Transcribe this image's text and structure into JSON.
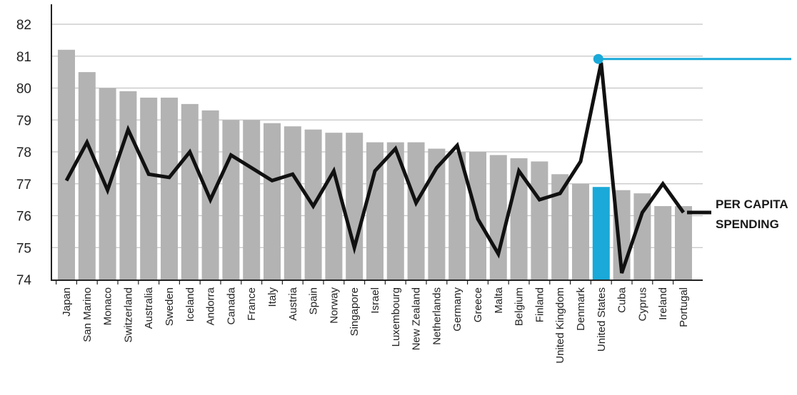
{
  "chart_data": {
    "type": "bar",
    "categories": [
      "Japan",
      "San Marino",
      "Monaco",
      "Switzerland",
      "Australia",
      "Sweden",
      "Iceland",
      "Andorra",
      "Canada",
      "France",
      "Italy",
      "Austria",
      "Spain",
      "Norway",
      "Singapore",
      "Israel",
      "Luxembourg",
      "New Zealand",
      "Netherlands",
      "Germany",
      "Greece",
      "Malta",
      "Belgium",
      "Finland",
      "United Kingdom",
      "Denmark",
      "United States",
      "Cuba",
      "Cyprus",
      "Ireland",
      "Portugal"
    ],
    "series": [
      {
        "values": [
          81.2,
          80.5,
          80.0,
          79.9,
          79.7,
          79.7,
          79.5,
          79.3,
          79.0,
          79.0,
          78.9,
          78.8,
          78.7,
          78.6,
          78.6,
          78.3,
          78.3,
          78.3,
          78.1,
          78.0,
          78.0,
          77.9,
          77.8,
          77.7,
          77.3,
          77.0,
          76.9,
          76.8,
          76.7,
          76.3,
          76.3
        ]
      }
    ],
    "line": {
      "name": "PER CAPITA SPENDING",
      "values": [
        77.1,
        78.3,
        76.8,
        78.7,
        77.3,
        77.2,
        78.0,
        76.5,
        77.9,
        77.5,
        77.1,
        77.3,
        76.3,
        77.4,
        75.0,
        77.4,
        78.1,
        76.4,
        77.5,
        78.2,
        75.9,
        74.8,
        77.4,
        76.5,
        76.7,
        77.7,
        80.8,
        74.2,
        76.1,
        77.0,
        76.1
      ]
    },
    "highlight_category": "United States",
    "colors": {
      "bar": "#b3b3b3",
      "highlight": "#1aa9d8",
      "line": "#111111",
      "grid": "#c4c4c4",
      "axis": "#222222"
    },
    "ylim": [
      74,
      82
    ],
    "yticks": [
      74,
      75,
      76,
      77,
      78,
      79,
      80,
      81,
      82
    ],
    "grid": true,
    "xlabel": "",
    "ylabel": "",
    "annotations": {
      "line_label": [
        "PER CAPITA",
        "SPENDING"
      ]
    }
  }
}
